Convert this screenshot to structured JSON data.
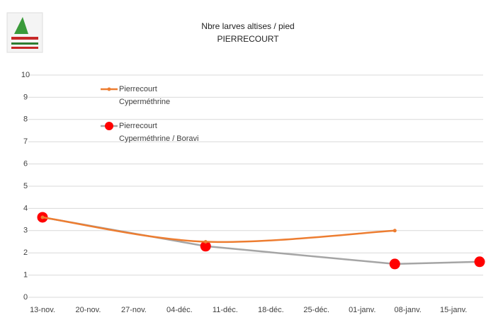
{
  "chart_data": {
    "type": "line",
    "title": "Nbre larves altises / pied",
    "subtitle": "PIERRECOURT",
    "xticks": [
      "13-nov.",
      "20-nov.",
      "27-nov.",
      "04-déc.",
      "11-déc.",
      "18-déc.",
      "25-déc.",
      "01-janv.",
      "08-janv.",
      "15-janv."
    ],
    "xlim": [
      "13-nov.",
      "19-janv."
    ],
    "ylim": [
      0,
      10
    ],
    "yticks": [
      0,
      1,
      2,
      3,
      4,
      5,
      6,
      7,
      8,
      9,
      10
    ],
    "grid": true,
    "series": [
      {
        "name": "Pierrecourt Cyperméthrine",
        "color": "#ed7d31",
        "smooth": true,
        "x": [
          "13-nov.",
          "08-déc.",
          "06-janv."
        ],
        "values": [
          3.6,
          2.5,
          3.0
        ]
      },
      {
        "name": "Pierrecourt Cyperméthrine / Boravi",
        "color": "#a5a5a5",
        "marker_color": "#ff0000",
        "x": [
          "13-nov.",
          "08-déc.",
          "06-janv.",
          "19-janv."
        ],
        "values": [
          3.6,
          2.3,
          1.5,
          1.6
        ]
      }
    ]
  }
}
